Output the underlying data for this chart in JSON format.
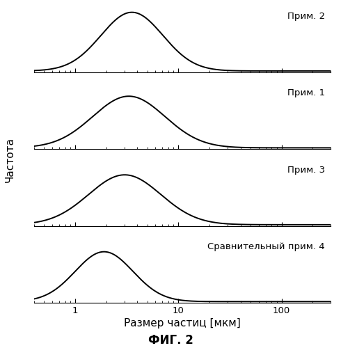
{
  "title": "ФИГ. 2",
  "xlabel": "Размер частиц [мкм]",
  "ylabel": "Частота",
  "xmin": 0.4,
  "xmax": 300,
  "panels": [
    {
      "label": "Прим. 2",
      "mu_log10": 0.55,
      "sigma_log10": 0.3,
      "amplitude": 1.0
    },
    {
      "label": "Прим. 1",
      "mu_log10": 0.52,
      "sigma_log10": 0.35,
      "amplitude": 0.88
    },
    {
      "label": "Прим. 3",
      "mu_log10": 0.48,
      "sigma_log10": 0.35,
      "amplitude": 0.85
    },
    {
      "label": "Сравнительный прим. 4",
      "mu_log10": 0.28,
      "sigma_log10": 0.28,
      "amplitude": 0.85
    }
  ],
  "xtick_major": [
    1,
    10,
    100
  ],
  "xtick_labels": [
    "1",
    "10",
    "100"
  ],
  "line_color": "#000000",
  "bg_color": "#ffffff",
  "label_fontsize": 9.5,
  "axis_label_fontsize": 11,
  "title_fontsize": 12,
  "line_width": 1.4
}
